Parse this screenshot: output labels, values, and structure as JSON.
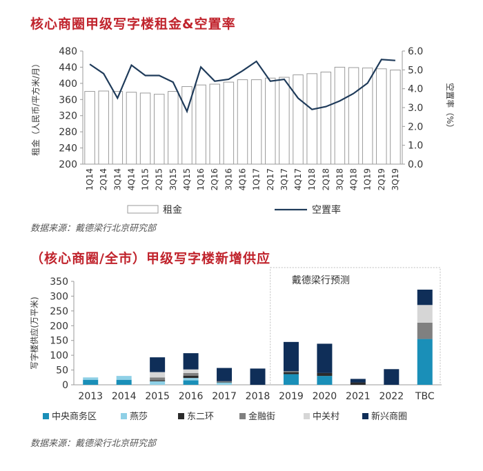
{
  "colors": {
    "title": "#c0232c",
    "line": "#1f3b5a",
    "bar_outline": "#9a9a9a",
    "cbd": "#1a8fb8",
    "yansha": "#8fd0e6",
    "east2": "#2b2b2b",
    "finance": "#808080",
    "zgc": "#d6d6d6",
    "emerging": "#0f2e58"
  },
  "chart_data": [
    {
      "type": "bar",
      "title": "核心商圈甲级写字楼租金&空置率",
      "ylabel": "租金（人民币/平方米/月）",
      "y2label": "空置率（%）",
      "ylim": [
        200,
        480
      ],
      "yticks": [
        200,
        240,
        280,
        320,
        360,
        400,
        440,
        480
      ],
      "y2lim": [
        0,
        6
      ],
      "y2ticks": [
        "0.0",
        "1.0",
        "2.0",
        "3.0",
        "4.0",
        "5.0",
        "6.0"
      ],
      "categories": [
        "1Q14",
        "2Q14",
        "3Q14",
        "4Q14",
        "1Q15",
        "2Q15",
        "3Q15",
        "4Q15",
        "1Q16",
        "2Q16",
        "3Q16",
        "4Q16",
        "1Q17",
        "2Q17",
        "3Q17",
        "4Q17",
        "1Q18",
        "2Q18",
        "3Q18",
        "4Q18",
        "1Q19",
        "2Q19",
        "3Q19"
      ],
      "series": [
        {
          "name": "租金",
          "kind": "bar",
          "axis": "left",
          "values": [
            380,
            381,
            380,
            378,
            376,
            373,
            380,
            392,
            396,
            398,
            403,
            409,
            409,
            413,
            415,
            421,
            424,
            428,
            440,
            439,
            438,
            436,
            433
          ]
        },
        {
          "name": "空置率",
          "kind": "line",
          "axis": "right",
          "values": [
            5.3,
            4.8,
            3.5,
            5.25,
            4.7,
            4.7,
            4.35,
            2.8,
            5.15,
            4.4,
            4.5,
            4.95,
            5.45,
            4.4,
            4.5,
            3.5,
            2.9,
            3.05,
            3.35,
            3.75,
            4.3,
            5.55,
            5.5
          ]
        }
      ],
      "legend": [
        "租金",
        "空置率"
      ],
      "legend_position": "bottom",
      "grid": false,
      "source": "数据来源：戴德梁行北京研究部"
    },
    {
      "type": "bar",
      "stacked": true,
      "title": "（核心商圈/全市）甲级写字楼新增供应",
      "ylabel": "写字楼供应(万平米)",
      "ylim": [
        0,
        350
      ],
      "yticks": [
        0,
        50,
        100,
        150,
        200,
        250,
        300,
        350
      ],
      "categories": [
        "2013",
        "2014",
        "2015",
        "2016",
        "2017",
        "2018",
        "2019",
        "2020",
        "2021",
        "2022",
        "TBC"
      ],
      "series": [
        {
          "name": "中央商务区",
          "values": [
            17,
            17,
            0,
            15,
            0,
            0,
            36,
            30,
            0,
            0,
            155
          ]
        },
        {
          "name": "燕莎",
          "values": [
            8,
            13,
            12,
            8,
            8,
            0,
            0,
            0,
            0,
            0,
            0
          ]
        },
        {
          "name": "东二环",
          "values": [
            0,
            0,
            3,
            8,
            2,
            0,
            6,
            10,
            8,
            0,
            0
          ]
        },
        {
          "name": "金融街",
          "values": [
            0,
            0,
            10,
            9,
            2,
            0,
            4,
            0,
            0,
            0,
            55
          ]
        },
        {
          "name": "中关村",
          "values": [
            0,
            0,
            18,
            12,
            0,
            0,
            0,
            0,
            0,
            0,
            60
          ]
        },
        {
          "name": "新兴商圈",
          "values": [
            0,
            0,
            50,
            55,
            45,
            55,
            99,
            99,
            12,
            53,
            52
          ]
        }
      ],
      "forecast_label": "戴德梁行预测",
      "forecast_range": [
        "2019",
        "TBC"
      ],
      "legend_position": "bottom",
      "grid": false,
      "source": "数据来源：戴德梁行北京研究部"
    }
  ]
}
